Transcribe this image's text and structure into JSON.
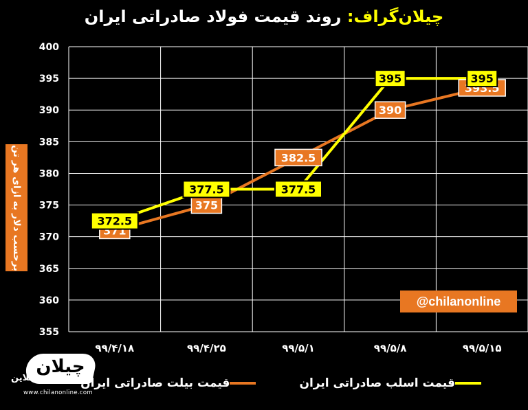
{
  "header": {
    "brand": "چیلان‌گراف:",
    "title": "روند قیمت فولاد صادراتی ایران"
  },
  "ylabel": "برحسب دلار به ازای هر تن",
  "handle": "@chilanonline",
  "logo": {
    "name": "چیلان",
    "accent": "آنلاین",
    "url": "www.chilanonline.com"
  },
  "colors": {
    "background": "#000000",
    "billet": "#e87722",
    "slab": "#ffff00",
    "grid": "#ffffff"
  },
  "chart_data": {
    "type": "line",
    "categories": [
      "۹۹/۴/۱۸",
      "۹۹/۴/۲۵",
      "۹۹/۵/۱",
      "۹۹/۵/۸",
      "۹۹/۵/۱۵"
    ],
    "ylim": [
      355,
      400
    ],
    "yticks": [
      355,
      360,
      365,
      370,
      375,
      380,
      385,
      390,
      395,
      400
    ],
    "grid": true,
    "legend_placement": "bottom",
    "series": [
      {
        "name": "قیمت اسلب صادراتی ایران",
        "color": "#ffff00",
        "values": [
          372.5,
          377.5,
          377.5,
          395,
          395
        ],
        "labels": [
          "372.5",
          "377.5",
          "377.5",
          "395",
          "395"
        ]
      },
      {
        "name": "قیمت بیلت صادراتی ایران",
        "color": "#e87722",
        "values": [
          371,
          375,
          382.5,
          390,
          393.5
        ],
        "labels": [
          "371",
          "375",
          "382.5",
          "390",
          "393.5"
        ]
      }
    ]
  }
}
